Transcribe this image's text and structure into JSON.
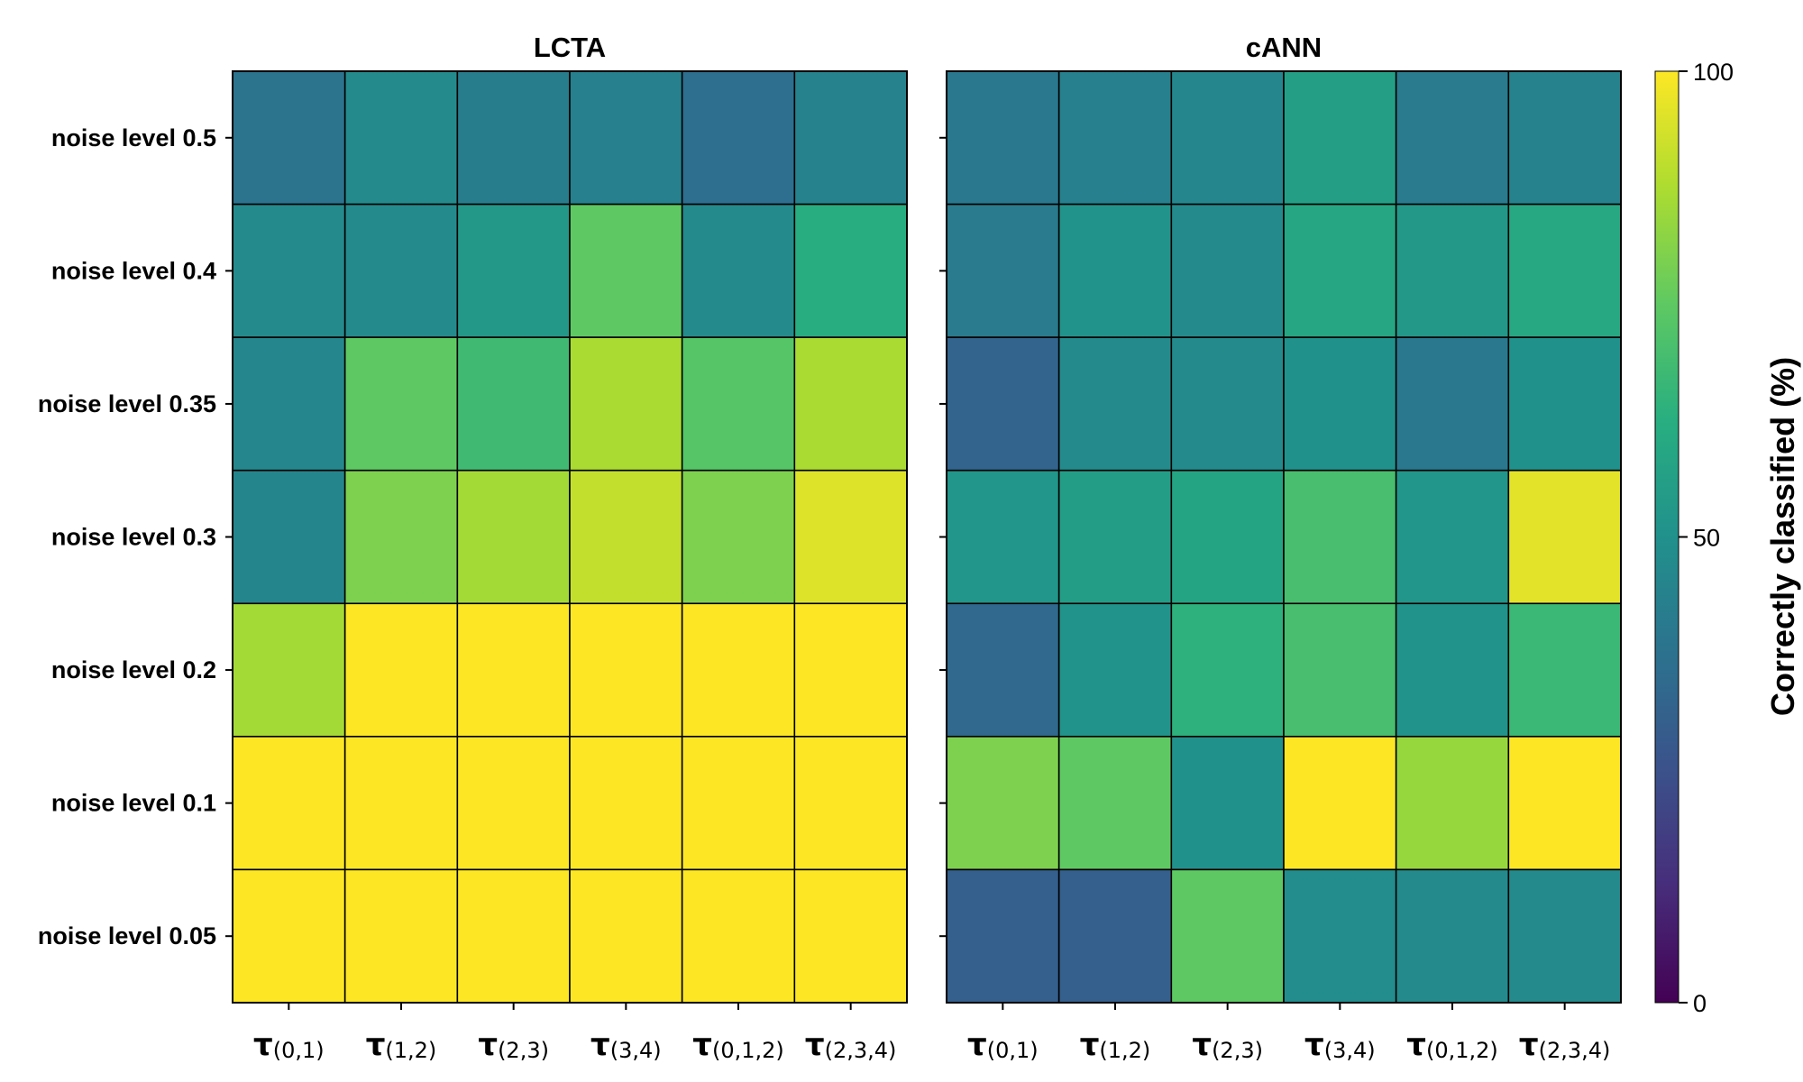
{
  "chart_data": [
    {
      "type": "heatmap",
      "title": "LCTA",
      "rows": [
        "noise level 0.5",
        "noise level 0.4",
        "noise level 0.35",
        "noise level 0.3",
        "noise level 0.2",
        "noise level 0.1",
        "noise level 0.05"
      ],
      "columns": [
        {
          "symbol": "τ",
          "sub": "(0,1)"
        },
        {
          "symbol": "τ",
          "sub": "(1,2)"
        },
        {
          "symbol": "τ",
          "sub": "(2,3)"
        },
        {
          "symbol": "τ",
          "sub": "(3,4)"
        },
        {
          "symbol": "τ",
          "sub": "(0,1,2)"
        },
        {
          "symbol": "τ",
          "sub": "(2,3,4)"
        }
      ],
      "values": [
        [
          38,
          47,
          42,
          43,
          36,
          44
        ],
        [
          47,
          47,
          53,
          75,
          47,
          62
        ],
        [
          46,
          75,
          68,
          87,
          73,
          87
        ],
        [
          45,
          80,
          86,
          91,
          80,
          95
        ],
        [
          86,
          100,
          100,
          100,
          100,
          100
        ],
        [
          100,
          100,
          100,
          100,
          100,
          100
        ],
        [
          100,
          100,
          100,
          100,
          100,
          100
        ]
      ]
    },
    {
      "type": "heatmap",
      "title": "cANN",
      "rows": [
        "noise level 0.5",
        "noise level 0.4",
        "noise level 0.35",
        "noise level 0.3",
        "noise level 0.2",
        "noise level 0.1",
        "noise level 0.05"
      ],
      "columns": [
        {
          "symbol": "τ",
          "sub": "(0,1)"
        },
        {
          "symbol": "τ",
          "sub": "(1,2)"
        },
        {
          "symbol": "τ",
          "sub": "(2,3)"
        },
        {
          "symbol": "τ",
          "sub": "(3,4)"
        },
        {
          "symbol": "τ",
          "sub": "(0,1,2)"
        },
        {
          "symbol": "τ",
          "sub": "(2,3,4)"
        }
      ],
      "values": [
        [
          40,
          43,
          46,
          56,
          41,
          44
        ],
        [
          41,
          51,
          47,
          59,
          53,
          60
        ],
        [
          32,
          47,
          47,
          50,
          40,
          50
        ],
        [
          52,
          55,
          58,
          70,
          52,
          96
        ],
        [
          34,
          51,
          64,
          70,
          51,
          67
        ],
        [
          80,
          75,
          50,
          100,
          84,
          100
        ],
        [
          30,
          30,
          75,
          48,
          47,
          47
        ]
      ]
    }
  ],
  "colorbar": {
    "label": "Correctly classified (%)",
    "range": [
      0,
      100
    ],
    "ticks": [
      "0",
      "50",
      "100"
    ],
    "colormap": "viridis"
  }
}
